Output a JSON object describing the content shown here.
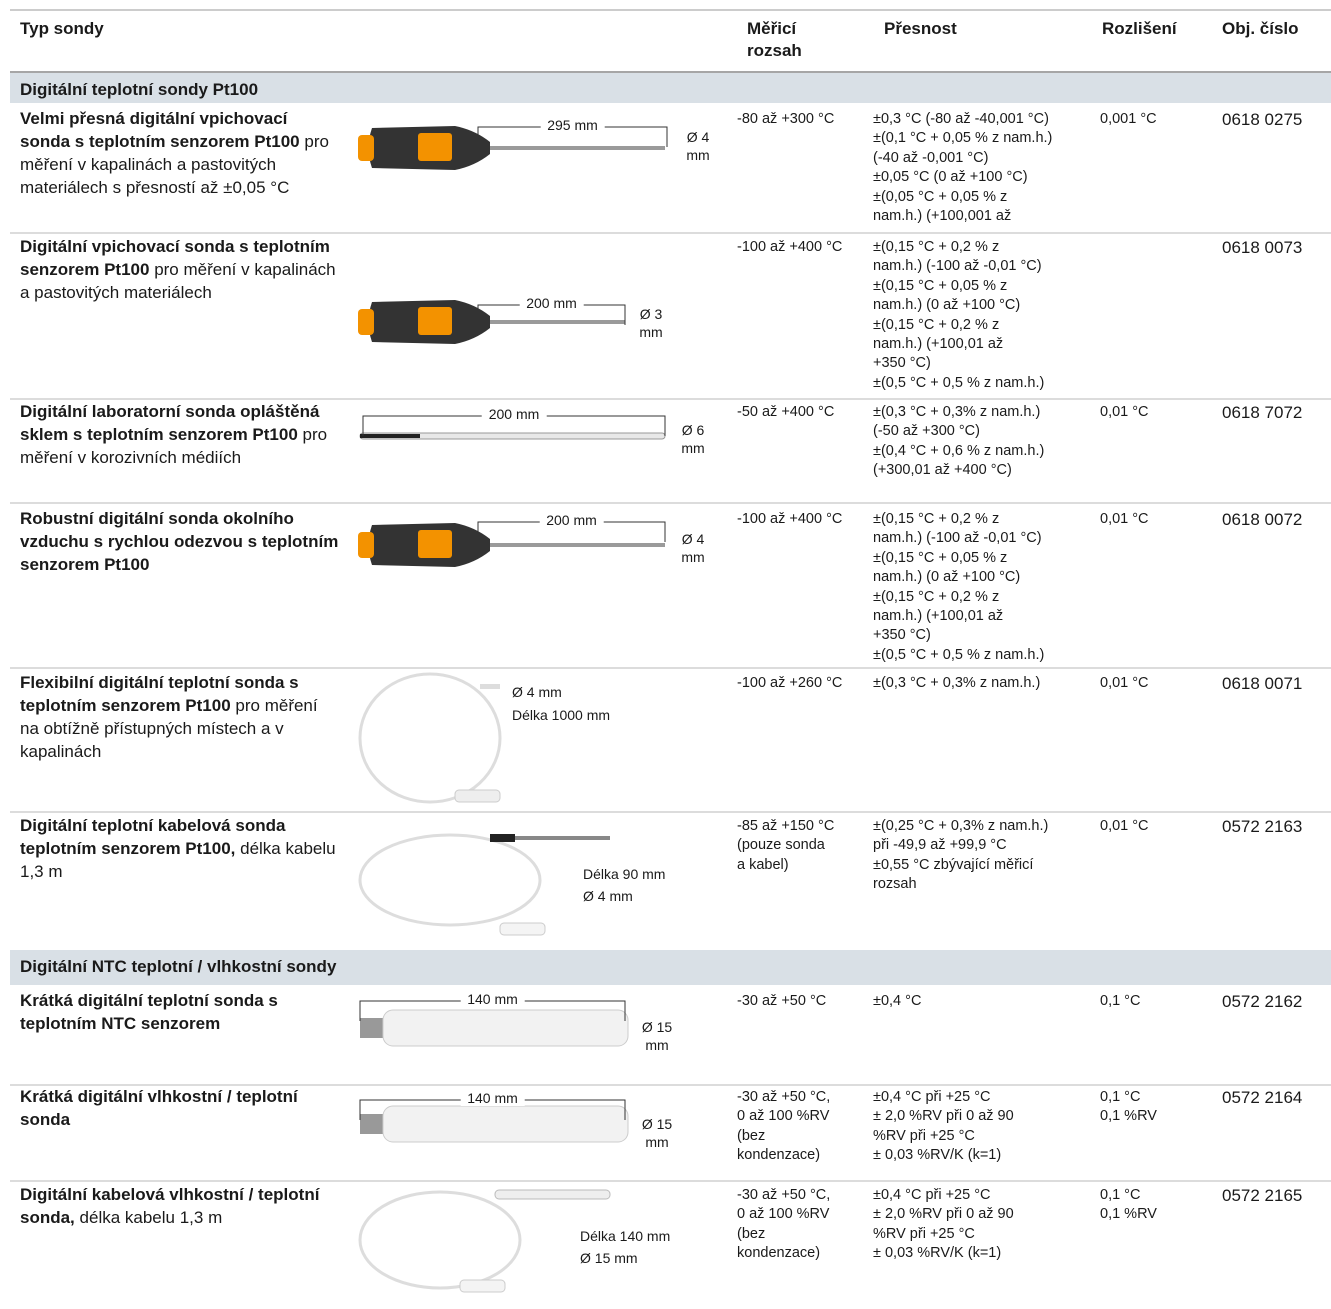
{
  "header": {
    "columns": [
      "Typ sondy",
      "Měřicí rozsah",
      "Přesnost",
      "Rozlišení",
      "Obj. číslo"
    ]
  },
  "sections": [
    {
      "title": "Digitální teplotní sondy Pt100",
      "rows": [
        {
          "name": "Velmi přesná digitální vpichovací sonda s teplotním senzorem Pt100",
          "description": "pro měření v kapalinách a pastovitých materiálech s přesností až ±0,05 °C",
          "length": "295 mm",
          "diameter": "Ø 4 mm",
          "range": [
            "-80 až +300 °C"
          ],
          "accuracy": [
            "±0,3 °C (-80 až -40,001 °C)",
            "±(0,1 °C + 0,05 % z nam.h.)",
            "(-40 až -0,001 °C)",
            "±0,05 °C (0 až +100 °C)",
            "±(0,05 °C + 0,05 % z",
            "nam.h.) (+100,001 až"
          ],
          "resolution": [
            "0,001 °C"
          ],
          "order": "0618 0275"
        },
        {
          "name": "Digitální vpichovací sonda s teplotním senzorem Pt100",
          "description": "pro měření v kapalinách a pastovitých materiálech",
          "length": "200 mm",
          "diameter": "Ø 3 mm",
          "range": [
            "-100 až +400 °C"
          ],
          "accuracy": [
            "±(0,15 °C + 0,2 % z",
            "nam.h.) (-100 až -0,01 °C)",
            "±(0,15 °C + 0,05 % z",
            "nam.h.) (0 až +100 °C)",
            "±(0,15 °C + 0,2 % z",
            "nam.h.) (+100,01 až",
            "+350 °C)",
            "±(0,5 °C + 0,5 % z nam.h.)"
          ],
          "resolution": [],
          "order": "0618 0073"
        },
        {
          "name": "Digitální laboratorní sonda opláštěná sklem s teplotním senzorem Pt100",
          "description": "pro měření v korozivních médiích",
          "length": "200 mm",
          "diameter": "Ø 6 mm",
          "range": [
            "-50 až +400 °C"
          ],
          "accuracy": [
            "±(0,3 °C + 0,3% z nam.h.)",
            "(-50 až +300 °C)",
            "±(0,4 °C + 0,6 % z nam.h.)",
            "(+300,01 až +400 °C)"
          ],
          "resolution": [
            "0,01 °C"
          ],
          "order": "0618 7072"
        },
        {
          "name": "Robustní digitální sonda okolního vzduchu s rychlou odezvou s teplotním senzorem Pt100",
          "length": "200 mm",
          "diameter": "Ø 4 mm",
          "range": [
            "-100 až +400 °C"
          ],
          "accuracy": [
            "±(0,15 °C + 0,2 % z",
            "nam.h.) (-100 až -0,01 °C)",
            "±(0,15 °C + 0,05 % z",
            "nam.h.) (0 až +100 °C)",
            "±(0,15 °C + 0,2 % z",
            "nam.h.) (+100,01 až",
            "+350 °C)",
            "±(0,5 °C + 0,5 % z nam.h.)"
          ],
          "resolution": [
            "0,01 °C"
          ],
          "order": "0618 0072"
        },
        {
          "name": "Flexibilní digitální teplotní sonda s teplotním senzorem Pt100",
          "description": "pro měření na obtížně přístupných místech a v kapalinách",
          "length": "Délka 1000 mm",
          "diameter": "Ø 4 mm",
          "range": [
            "-100 až +260 °C"
          ],
          "accuracy": [
            "±(0,3 °C + 0,3% z nam.h.)"
          ],
          "resolution": [
            "0,01 °C"
          ],
          "order": "0618 0071"
        },
        {
          "name": "Digitální teplotní kabelová sonda teplotním senzorem Pt100,",
          "description": "délka kabelu 1,3 m",
          "length": "Délka 90 mm",
          "diameter": "Ø 4 mm",
          "range": [
            "-85 až +150 °C",
            "(pouze sonda",
            "a kabel)"
          ],
          "accuracy": [
            "±(0,25 °C + 0,3% z nam.h.)",
            "při -49,9 až +99,9 °C",
            "±0,55 °C zbývající měřicí",
            "rozsah"
          ],
          "resolution": [
            "0,01 °C"
          ],
          "order": "0572 2163"
        }
      ]
    },
    {
      "title": "Digitální NTC teplotní / vlhkostní sondy",
      "rows": [
        {
          "name": "Krátká digitální teplotní sonda s teplotním NTC senzorem",
          "length": "140 mm",
          "diameter": "Ø 15 mm",
          "range": [
            "-30 až +50 °C"
          ],
          "accuracy": [
            "±0,4 °C"
          ],
          "resolution": [
            "0,1 °C"
          ],
          "order": "0572 2162"
        },
        {
          "name": "Krátká digitální vlhkostní / teplotní sonda",
          "length": "140 mm",
          "diameter": "Ø 15 mm",
          "range": [
            "-30 až +50 °C,",
            "0 až 100 %RV",
            "(bez",
            "kondenzace)"
          ],
          "accuracy": [
            "±0,4 °C při +25 °C",
            "± 2,0 %RV při 0 až 90",
            "%RV při +25 °C",
            "± 0,03 %RV/K (k=1)"
          ],
          "resolution": [
            "0,1 °C",
            "0,1 %RV"
          ],
          "order": "0572 2164"
        },
        {
          "name": "Digitální kabelová vlhkostní / teplotní sonda,",
          "description": "délka kabelu 1,3 m",
          "length": "Délka 140 mm",
          "diameter": "Ø 15 mm",
          "range": [
            "-30 až +50 °C,",
            "0 až 100 %RV",
            "(bez",
            "kondenzace)"
          ],
          "accuracy": [
            "±0,4 °C při +25 °C",
            "± 2,0 %RV při 0 až 90",
            "%RV při +25 °C",
            "± 0,03 %RV/K (k=1)"
          ],
          "resolution": [
            "0,1 °C",
            "0,1 %RV"
          ],
          "order": "0572 2165"
        }
      ]
    }
  ]
}
